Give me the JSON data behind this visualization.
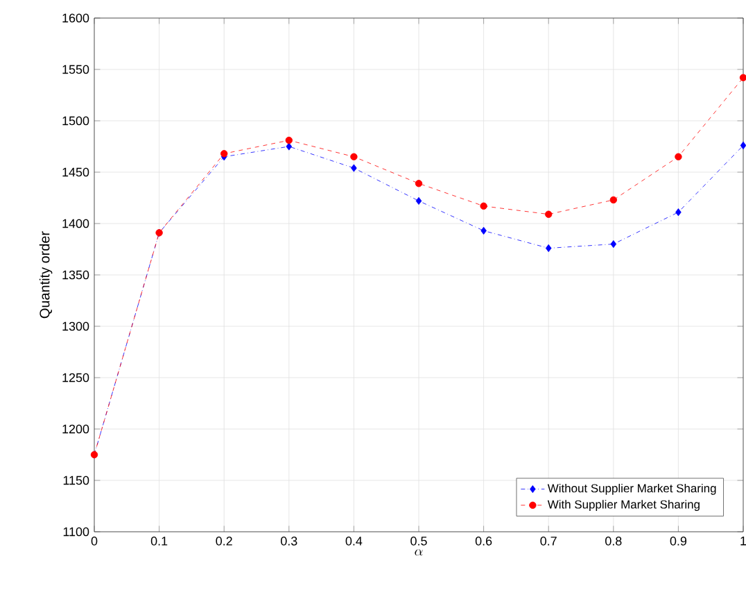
{
  "chart_data": {
    "type": "line",
    "xlabel": "\\alpha",
    "ylabel": "Quantity order",
    "x": [
      0,
      0.1,
      0.2,
      0.3,
      0.4,
      0.5,
      0.6,
      0.7,
      0.8,
      0.9,
      1
    ],
    "xlim": [
      0,
      1
    ],
    "xticks": [
      0,
      0.1,
      0.2,
      0.3,
      0.4,
      0.5,
      0.6,
      0.7,
      0.8,
      0.9,
      1
    ],
    "ylim": [
      1100,
      1600
    ],
    "yticks": [
      1100,
      1150,
      1200,
      1250,
      1300,
      1350,
      1400,
      1450,
      1500,
      1550,
      1600
    ],
    "grid": true,
    "legend": "bottom right",
    "series": [
      {
        "name": "Without Supplier Market Sharing",
        "color": "#0000ff",
        "marker": "diamond",
        "line_style": "dashdot",
        "values": [
          1175,
          1391,
          1465,
          1475,
          1454,
          1422,
          1393,
          1376,
          1380,
          1411,
          1476
        ]
      },
      {
        "name": "With Supplier Market Sharing",
        "color": "#ff0000",
        "marker": "circle",
        "line_style": "dashed",
        "values": [
          1175,
          1391,
          1468,
          1481,
          1465,
          1439,
          1417,
          1409,
          1423,
          1465,
          1542
        ]
      }
    ]
  }
}
